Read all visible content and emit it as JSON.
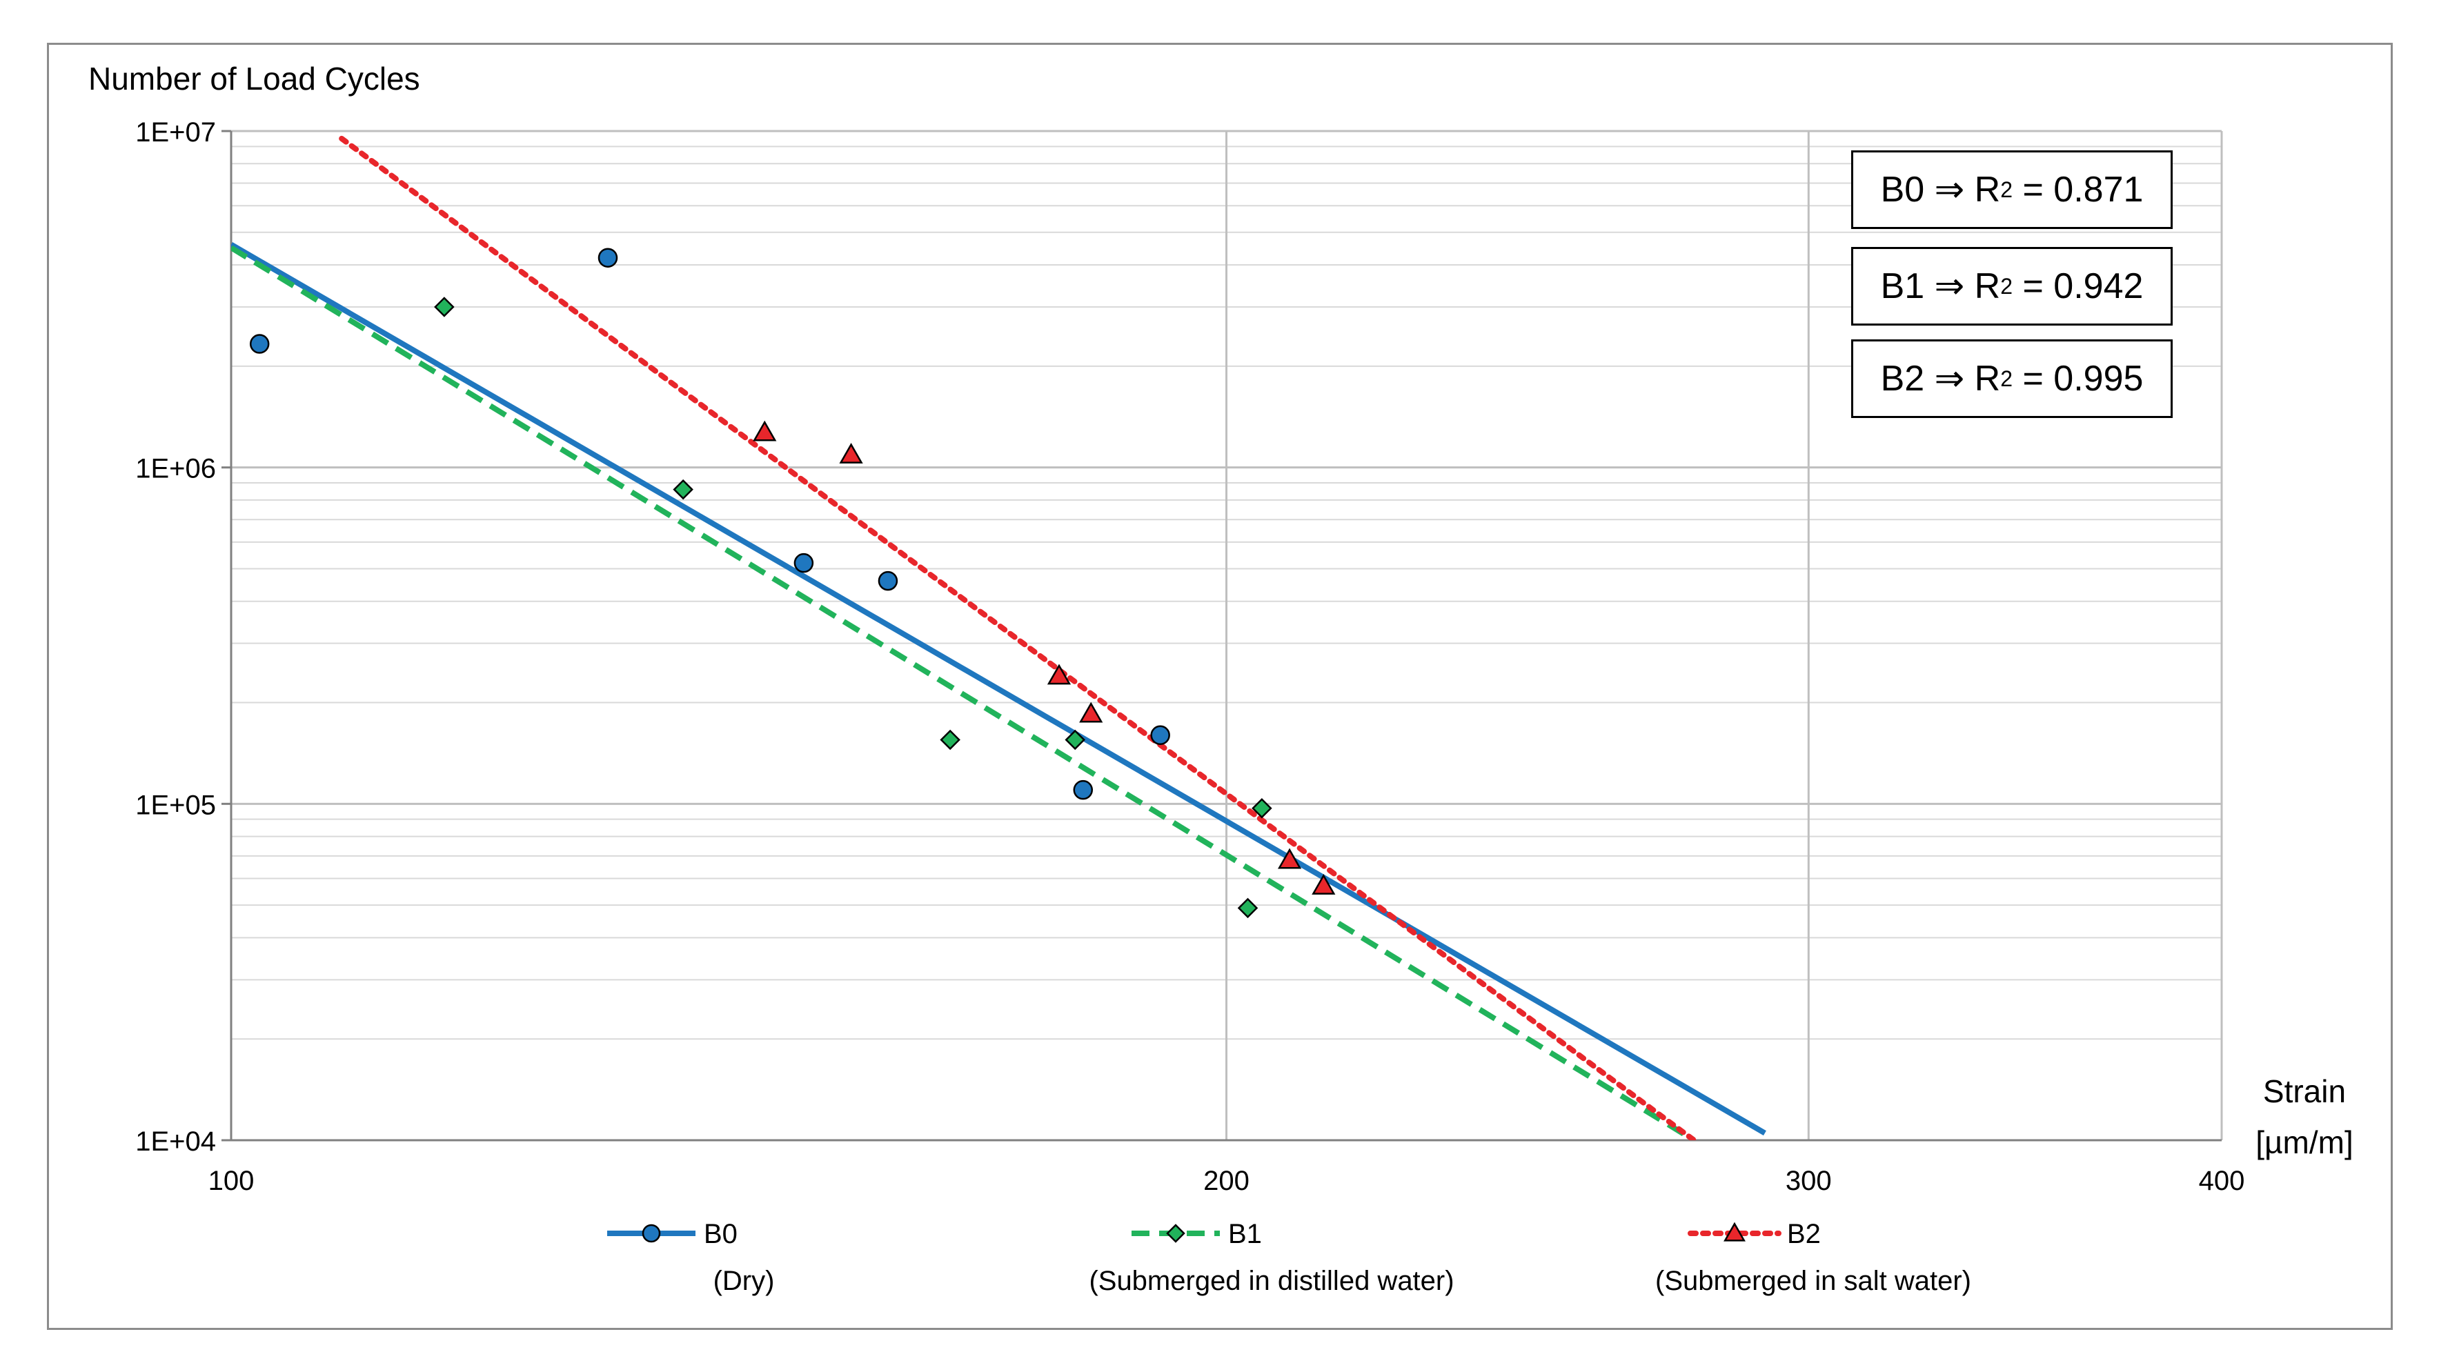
{
  "chart_data": {
    "type": "scatter",
    "y_axis_title": "Number of Load Cycles",
    "x_axis_title_line1": "Strain",
    "x_axis_title_line2": "[µm/m]",
    "x_scale": "log",
    "y_scale": "log",
    "xlim": [
      100,
      400
    ],
    "ylim": [
      10000,
      10000000
    ],
    "x_ticks": [
      {
        "value": 100,
        "label": "100"
      },
      {
        "value": 200,
        "label": "200"
      },
      {
        "value": 300,
        "label": "300"
      },
      {
        "value": 400,
        "label": "400"
      }
    ],
    "y_ticks": [
      {
        "value": 10000,
        "label": "1E+04"
      },
      {
        "value": 100000,
        "label": "1E+05"
      },
      {
        "value": 1000000,
        "label": "1E+06"
      },
      {
        "value": 10000000,
        "label": "1E+07"
      }
    ],
    "grid": true,
    "legend_position": "bottom",
    "series": [
      {
        "name": "B0",
        "description": "(Dry)",
        "color": "#1f77bf",
        "marker": "circle",
        "line_style": "solid",
        "points": [
          [
            102,
            2330000
          ],
          [
            130,
            4200000
          ],
          [
            149,
            520000
          ],
          [
            158,
            460000
          ],
          [
            181,
            110000
          ],
          [
            191,
            160000
          ]
        ],
        "trend": {
          "x": [
            100,
            291
          ],
          "y": [
            4600000,
            10500
          ]
        },
        "r2_prefix": "B0 ⇒ R",
        "r2_suffix": " = 0.871"
      },
      {
        "name": "B1",
        "description": "(Submerged in distilled water)",
        "color": "#21b35b",
        "marker": "diamond",
        "line_style": "dashed",
        "points": [
          [
            116,
            3000000
          ],
          [
            137,
            860000
          ],
          [
            165,
            155000
          ],
          [
            180,
            155000
          ],
          [
            203,
            49000
          ],
          [
            205,
            97000
          ]
        ],
        "trend": {
          "x": [
            100,
            277
          ],
          "y": [
            4500000,
            10000
          ]
        },
        "r2_prefix": "B1 ⇒ R",
        "r2_suffix": " = 0.942"
      },
      {
        "name": "B2",
        "description": "(Submerged in salt water)",
        "color": "#e8262b",
        "marker": "triangle",
        "line_style": "dotted",
        "points": [
          [
            145,
            1270000
          ],
          [
            154,
            1090000
          ],
          [
            178,
            240000
          ],
          [
            182,
            185000
          ],
          [
            209,
            68000
          ],
          [
            214,
            57000
          ]
        ],
        "trend": {
          "x": [
            108,
            277
          ],
          "y": [
            9500000,
            10000
          ]
        },
        "r2_prefix": "B2 ⇒ R",
        "r2_suffix": " = 0.995"
      }
    ]
  }
}
